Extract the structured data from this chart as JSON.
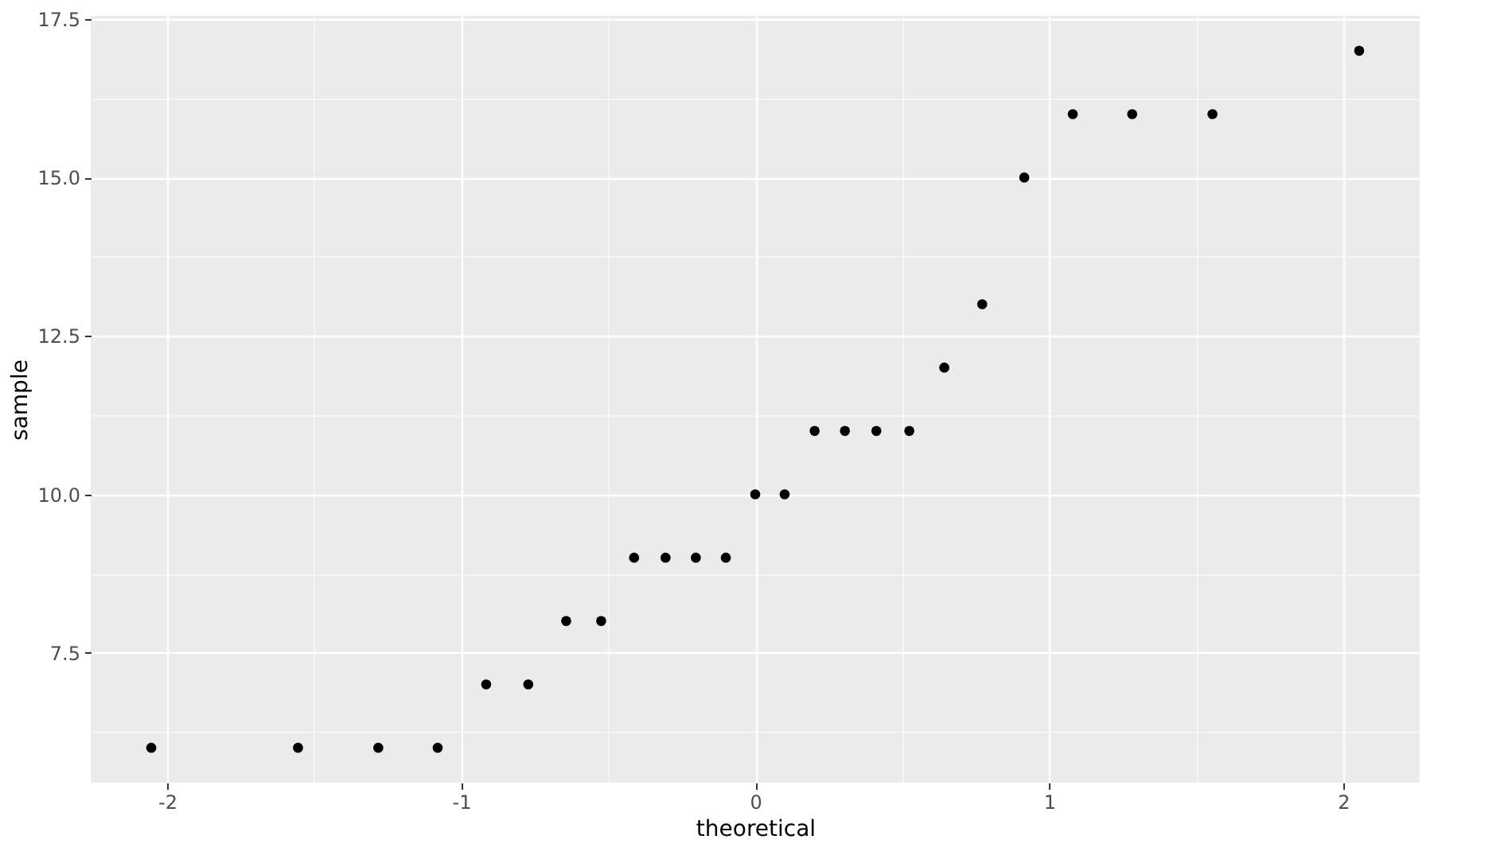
{
  "chart_data": {
    "type": "scatter",
    "xlabel": "theoretical",
    "ylabel": "sample",
    "x": [
      -2.054,
      -1.555,
      -1.282,
      -1.08,
      -0.915,
      -0.772,
      -0.643,
      -0.524,
      -0.412,
      -0.305,
      -0.202,
      -0.1,
      0,
      0.1,
      0.202,
      0.305,
      0.412,
      0.524,
      0.643,
      0.772,
      0.915,
      1.08,
      1.282,
      1.555,
      2.054
    ],
    "series": [
      {
        "color": "#000000",
        "values": [
          6,
          6,
          6,
          6,
          7,
          7,
          8,
          8,
          9,
          9,
          9,
          9,
          10,
          10,
          11,
          11,
          11,
          11,
          12,
          13,
          15,
          16,
          16,
          16,
          17
        ]
      }
    ],
    "xlim": [
      -2.26,
      2.26
    ],
    "xticks": [
      -2,
      {
        "value": -1.5,
        "label": null
      },
      -1,
      {
        "value": -0.5,
        "label": null
      },
      0,
      {
        "value": 0.5,
        "label": null
      },
      1,
      {
        "value": 1.5,
        "label": null
      },
      2
    ],
    "ylim": [
      5.45,
      17.55
    ],
    "yticks": [
      {
        "value": 6.25,
        "label": null
      },
      {
        "value": 7.5,
        "label": "7.5"
      },
      {
        "value": 8.75,
        "label": null
      },
      {
        "value": 10,
        "label": "10.0"
      },
      {
        "value": 11.25,
        "label": null
      },
      {
        "value": 12.5,
        "label": "12.5"
      },
      {
        "value": 13.75,
        "label": null
      },
      {
        "value": 15,
        "label": "15.0"
      },
      {
        "value": 16.25,
        "label": null
      },
      {
        "value": 17.5,
        "label": "17.5"
      }
    ],
    "grid": true,
    "marker": "circle"
  }
}
